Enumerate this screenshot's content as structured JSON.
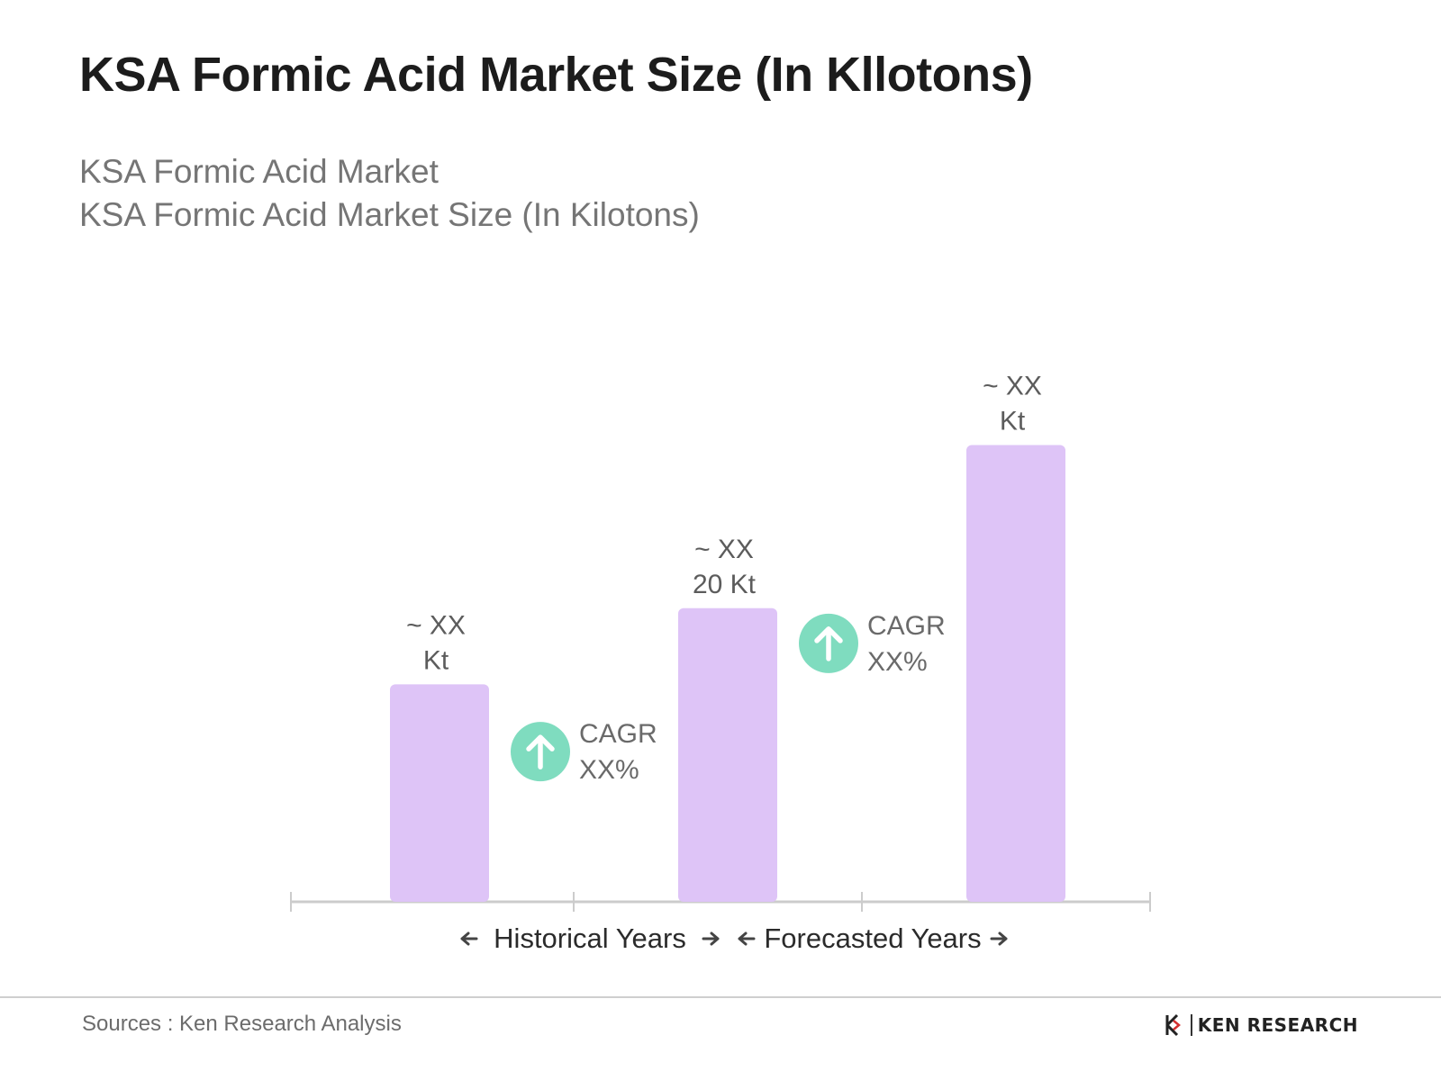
{
  "header": {
    "title": "KSA Formic Acid Market Size (In Kllotons)",
    "subtitle_line1": "KSA Formic Acid Market",
    "subtitle_line2": "KSA Formic Acid Market Size (In Kilotons)"
  },
  "chart_data": {
    "type": "bar",
    "title": "KSA Formic Acid Market Size (In Kllotons)",
    "categories": [
      "",
      "",
      ""
    ],
    "series": [
      {
        "values": [
          10,
          13.5,
          21
        ],
        "labels": [
          [
            "~ XX",
            "Kt"
          ],
          [
            "~ XX",
            "20 Kt"
          ],
          [
            "~ XX",
            "Kt"
          ]
        ]
      }
    ],
    "ylim": [
      0,
      24
    ],
    "grid": false,
    "legend": "none",
    "annotations": [
      {
        "text_line1": "CAGR",
        "text_line2": "XX%",
        "between": [
          0,
          1
        ]
      },
      {
        "text_line1": "CAGR",
        "text_line2": "XX%",
        "between": [
          1,
          2
        ]
      }
    ],
    "periods": [
      {
        "label": "Historical Years",
        "span": [
          0,
          1
        ]
      },
      {
        "label": "Forecasted Years",
        "span": [
          1,
          2
        ]
      }
    ],
    "colors": {
      "bar": "#dec4f7",
      "axis": "#cccccc",
      "cagr_icon": "#7fdcbf",
      "label": "#5c5c5c",
      "period_label": "#2b2b2b"
    }
  },
  "footer": {
    "sources": "Sources : Ken Research Analysis",
    "brand": "KEN RESEARCH",
    "brand_icon": "ken-research-logo-icon"
  }
}
